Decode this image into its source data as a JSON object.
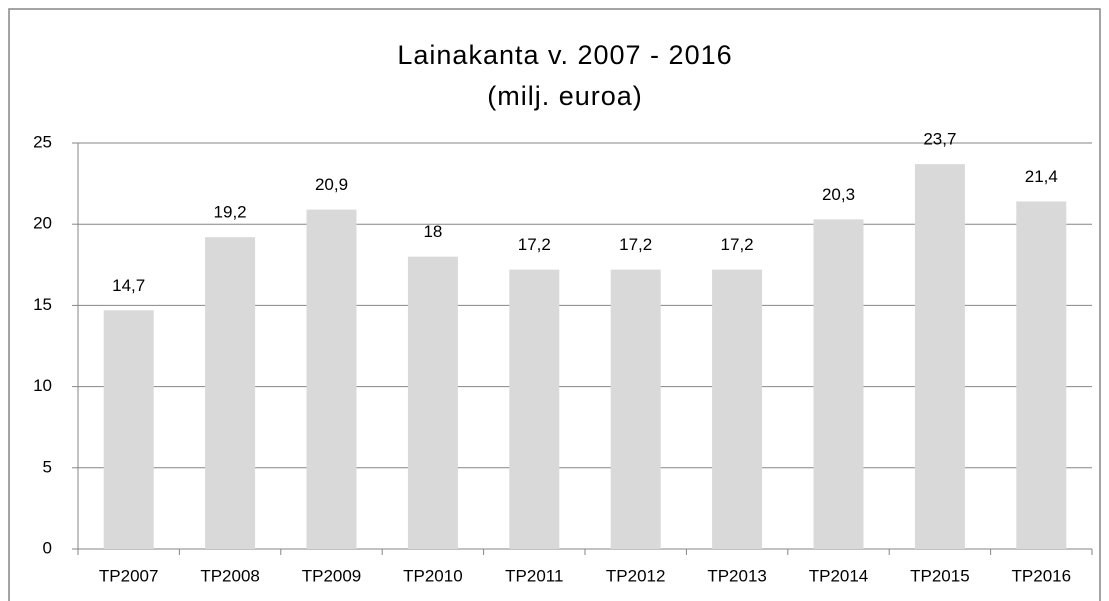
{
  "chart_data": {
    "type": "bar",
    "title": "Lainakanta v. 2007 - 2016",
    "subtitle": "(milj. euroa)",
    "categories": [
      "TP2007",
      "TP2008",
      "TP2009",
      "TP2010",
      "TP2011",
      "TP2012",
      "TP2013",
      "TP2014",
      "TP2015",
      "TP2016"
    ],
    "values": [
      14.7,
      19.2,
      20.9,
      18,
      17.2,
      17.2,
      17.2,
      20.3,
      23.7,
      21.4
    ],
    "value_labels": [
      "14,7",
      "19,2",
      "20,9",
      "18",
      "17,2",
      "17,2",
      "17,2",
      "20,3",
      "23,7",
      "21,4"
    ],
    "color": "#d9d9d9",
    "ylim": [
      0,
      25
    ],
    "yticks": [
      0,
      5,
      10,
      15,
      20,
      25
    ],
    "grid": true
  }
}
